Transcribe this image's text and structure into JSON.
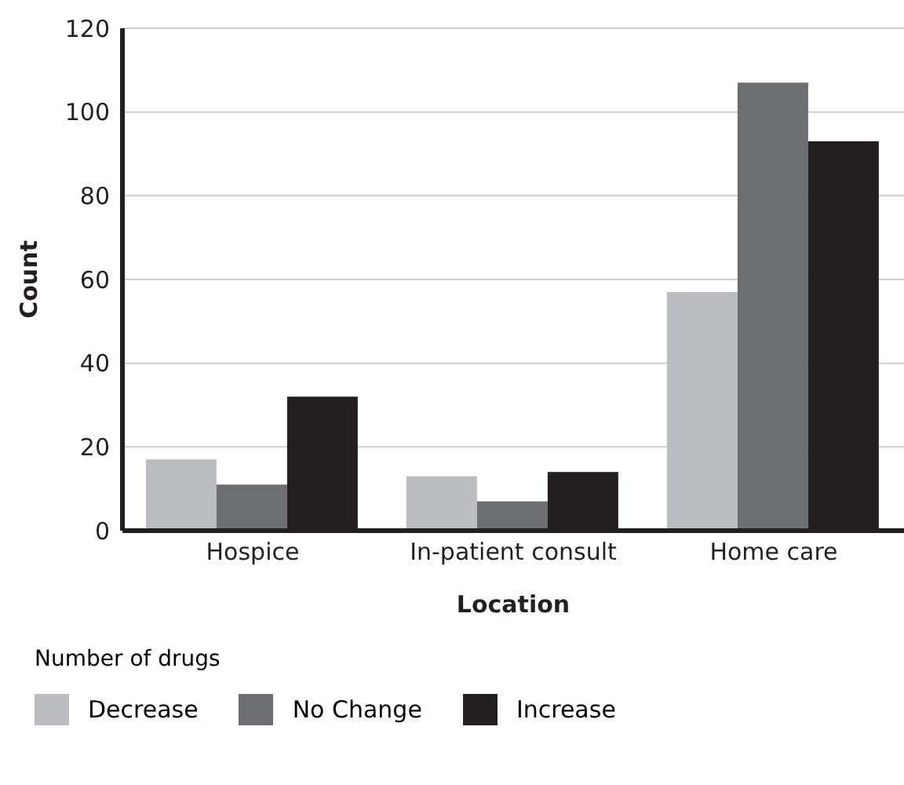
{
  "chart_data": {
    "type": "bar",
    "xlabel": "Location",
    "ylabel": "Count",
    "legend_title": "Number of drugs",
    "categories": [
      "Hospice",
      "In-patient consult",
      "Home care"
    ],
    "series": [
      {
        "name": "Decrease",
        "color": "#bbbcc0",
        "values": [
          17,
          13,
          57
        ]
      },
      {
        "name": "No Change",
        "color": "#6d6e72",
        "values": [
          11,
          7,
          107
        ]
      },
      {
        "name": "Increase",
        "color": "#231f20",
        "values": [
          32,
          14,
          93
        ]
      }
    ],
    "ylim": [
      0,
      120
    ],
    "yticks": [
      0,
      20,
      40,
      60,
      80,
      100,
      120
    ],
    "grid": "y",
    "legend": "bottom"
  }
}
